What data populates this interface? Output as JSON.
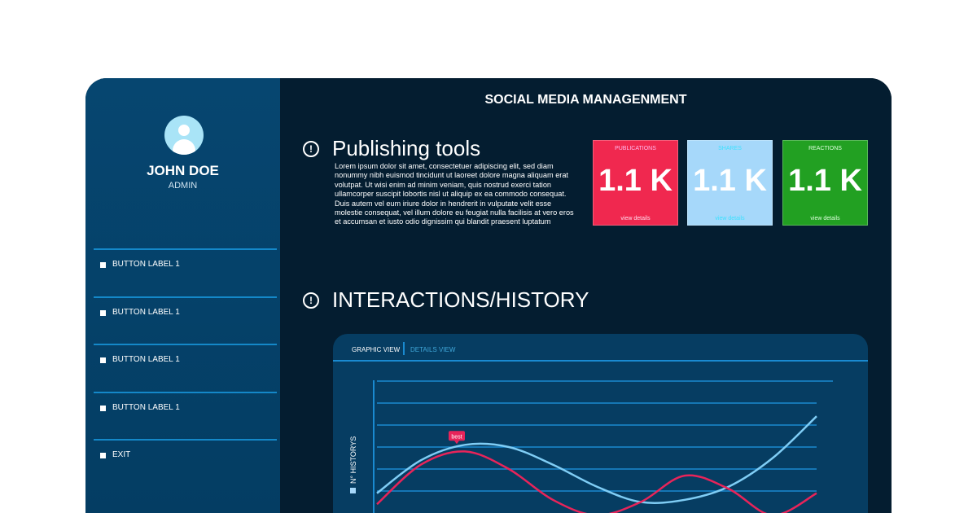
{
  "user": {
    "name": "JOHN DOE",
    "role": "ADMIN"
  },
  "nav": [
    {
      "label": "BUTTON LABEL 1"
    },
    {
      "label": "BUTTON LABEL 1"
    },
    {
      "label": "BUTTON LABEL 1"
    },
    {
      "label": "BUTTON LABEL 1"
    },
    {
      "label": "EXIT"
    }
  ],
  "header": {
    "title": "SOCIAL MEDIA MANAGENMENT"
  },
  "publishing": {
    "heading": "Publishing tools",
    "body": "Lorem ipsum dolor sit amet, consectetuer adipiscing elit, sed diam nonummy nibh euismod tincidunt ut laoreet dolore magna aliquam erat volutpat. Ut wisi enim ad minim veniam, quis nostrud exerci tation ullamcorper suscipit lobortis nisl ut aliquip ex ea commodo consequat. Duis autem vel eum iriure dolor in hendrerit in vulputate velit esse molestie consequat, vel illum dolore eu feugiat nulla facilisis at vero eros et accumsan et iusto odio dignissim qui blandit praesent luptatum"
  },
  "cards": [
    {
      "label": "PUBLICATIONS",
      "value": "1.1 K",
      "link": "view details",
      "color": "#f0284f"
    },
    {
      "label": "SHARES",
      "value": "1.1 K",
      "link": "view details",
      "color": "#a6d8fa"
    },
    {
      "label": "REACTIONS",
      "value": "1.1 K",
      "link": "view details",
      "color": "#22a022"
    }
  ],
  "interactions": {
    "heading": "INTERACTIONS/HISTORY",
    "tabs": [
      "GRAPHIC VIEW",
      "DETAILS VIEW"
    ]
  },
  "chart_data": {
    "type": "line",
    "ylabel": "N° HISTORYS",
    "grid": true,
    "annotation": {
      "text": "best",
      "series": 0,
      "index": 2
    },
    "series": [
      {
        "color": "#7fcdf5",
        "values": [
          0.9,
          2.4,
          3.1,
          3.0,
          2.2,
          1.2,
          0.5,
          0.6,
          1.2,
          2.5,
          4.4
        ]
      },
      {
        "color": "#e8245a",
        "values": [
          0.4,
          2.2,
          2.8,
          2.0,
          0.6,
          -0.1,
          0.5,
          1.7,
          1.1,
          -0.1,
          0.9
        ]
      }
    ]
  }
}
